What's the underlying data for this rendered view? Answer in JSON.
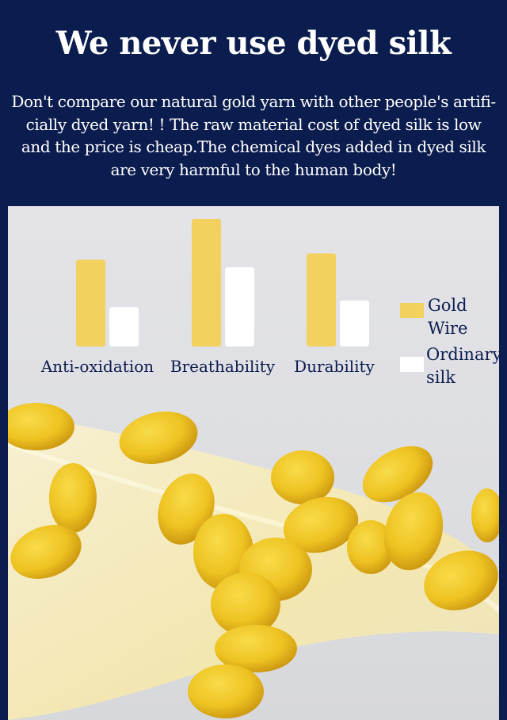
{
  "page": {
    "title": "We never use dyed silk",
    "description": "Don't compare our natural gold yarn with other people's artifi-cially dyed yarn! ! The raw material cost of dyed silk is low and the price is cheap.The chemical dyes added in dyed silk are very harmful to the human body!"
  },
  "colors": {
    "header_bg": "#0b1c4e",
    "gold": "#f3d15e",
    "ordinary": "#ffffff",
    "label_text": "#0b1c4e"
  },
  "chart_data": {
    "type": "bar",
    "title": "",
    "xlabel": "",
    "ylabel": "",
    "ylim": [
      0,
      100
    ],
    "categories": [
      "Anti-oxidation",
      "Breathability",
      "Durability"
    ],
    "series": [
      {
        "name": "Gold Wire",
        "values": [
          68,
          100,
          73
        ]
      },
      {
        "name": "Ordinary silk",
        "values": [
          31,
          62,
          36
        ]
      }
    ],
    "legend_position": "right",
    "grid": false
  },
  "legend": {
    "gold_line1": "Gold",
    "gold_line2": "Wire",
    "ordinary_line1": "Ordinary",
    "ordinary_line2": "silk"
  }
}
